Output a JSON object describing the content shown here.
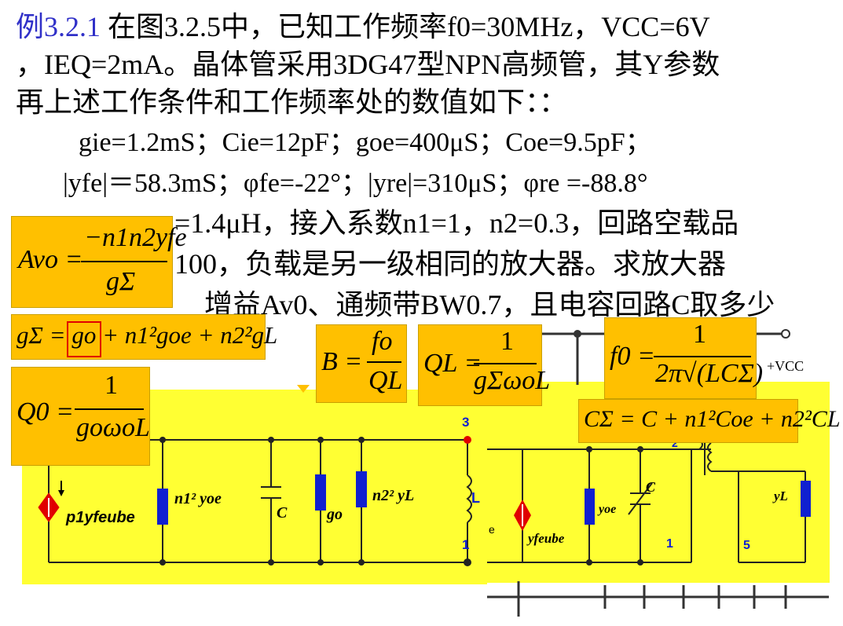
{
  "problem": {
    "line1_example": "例3.2.1",
    "line1": "在图3.2.5中，已知工作频率f0=30MHz，VCC=6V",
    "line2": "，IEQ=2mA。晶体管采用3DG47型NPN高频管，其Y参数",
    "line3": "再上述工作条件和工作频率处的数值如下：：",
    "line4": "gie=1.2mS；Cie=12pF；goe=400μS；Coe=9.5pF；",
    "line5": "|yfe|＝58.3mS；φfe=-22°；|yre|=310μS；φre =-88.8°",
    "line6_visible": "=1.4μH，接入系数n1=1，n2=0.3，回路空载品",
    "line7_visible": "100，负载是另一级相同的放大器。求放大器",
    "line8_visible": "增益Av0、通频带BW0.7，且电容回路C取多少"
  },
  "formulas": {
    "av0": {
      "lhs": "Avo =",
      "num": "−n1n2yfe",
      "den": "gΣ"
    },
    "gsum": "gΣ = go + n1²goe + n2²gL",
    "go_highlight": "go",
    "q0": {
      "lhs": "Q0 =",
      "num": "1",
      "den": "goωoL"
    },
    "bw": {
      "lhs": "B =",
      "num": "fo",
      "den": "QL"
    },
    "ql": {
      "lhs": "QL =",
      "num": "1",
      "den": "gΣωoL"
    },
    "f0": {
      "lhs": "f0 =",
      "num": "1",
      "den": "2π√(LCΣ)"
    },
    "csum": "CΣ = C + n1²Coe + n2²CL"
  },
  "circuit_left": {
    "source_label": "p1yfeube",
    "yoe_label": "n1² yoe",
    "c_label": "C",
    "go_label": "go",
    "yl_label": "n2² yL",
    "l_label": "L",
    "node_3": "3",
    "node_1": "1"
  },
  "circuit_right": {
    "vcc_label": "+VCC",
    "node_2": "2",
    "source_label": "yfeube",
    "yoe_label": "yoe",
    "c_label": "C",
    "yl_label": "yL",
    "node_1": "1",
    "node_5": "5",
    "cut_label": "e"
  },
  "colors": {
    "formula_box": "#ffc000",
    "circuit_bg": "#ffff33",
    "example_blue": "#3030c8",
    "component_blue": "#1020d0",
    "source_red": "#e00000"
  }
}
